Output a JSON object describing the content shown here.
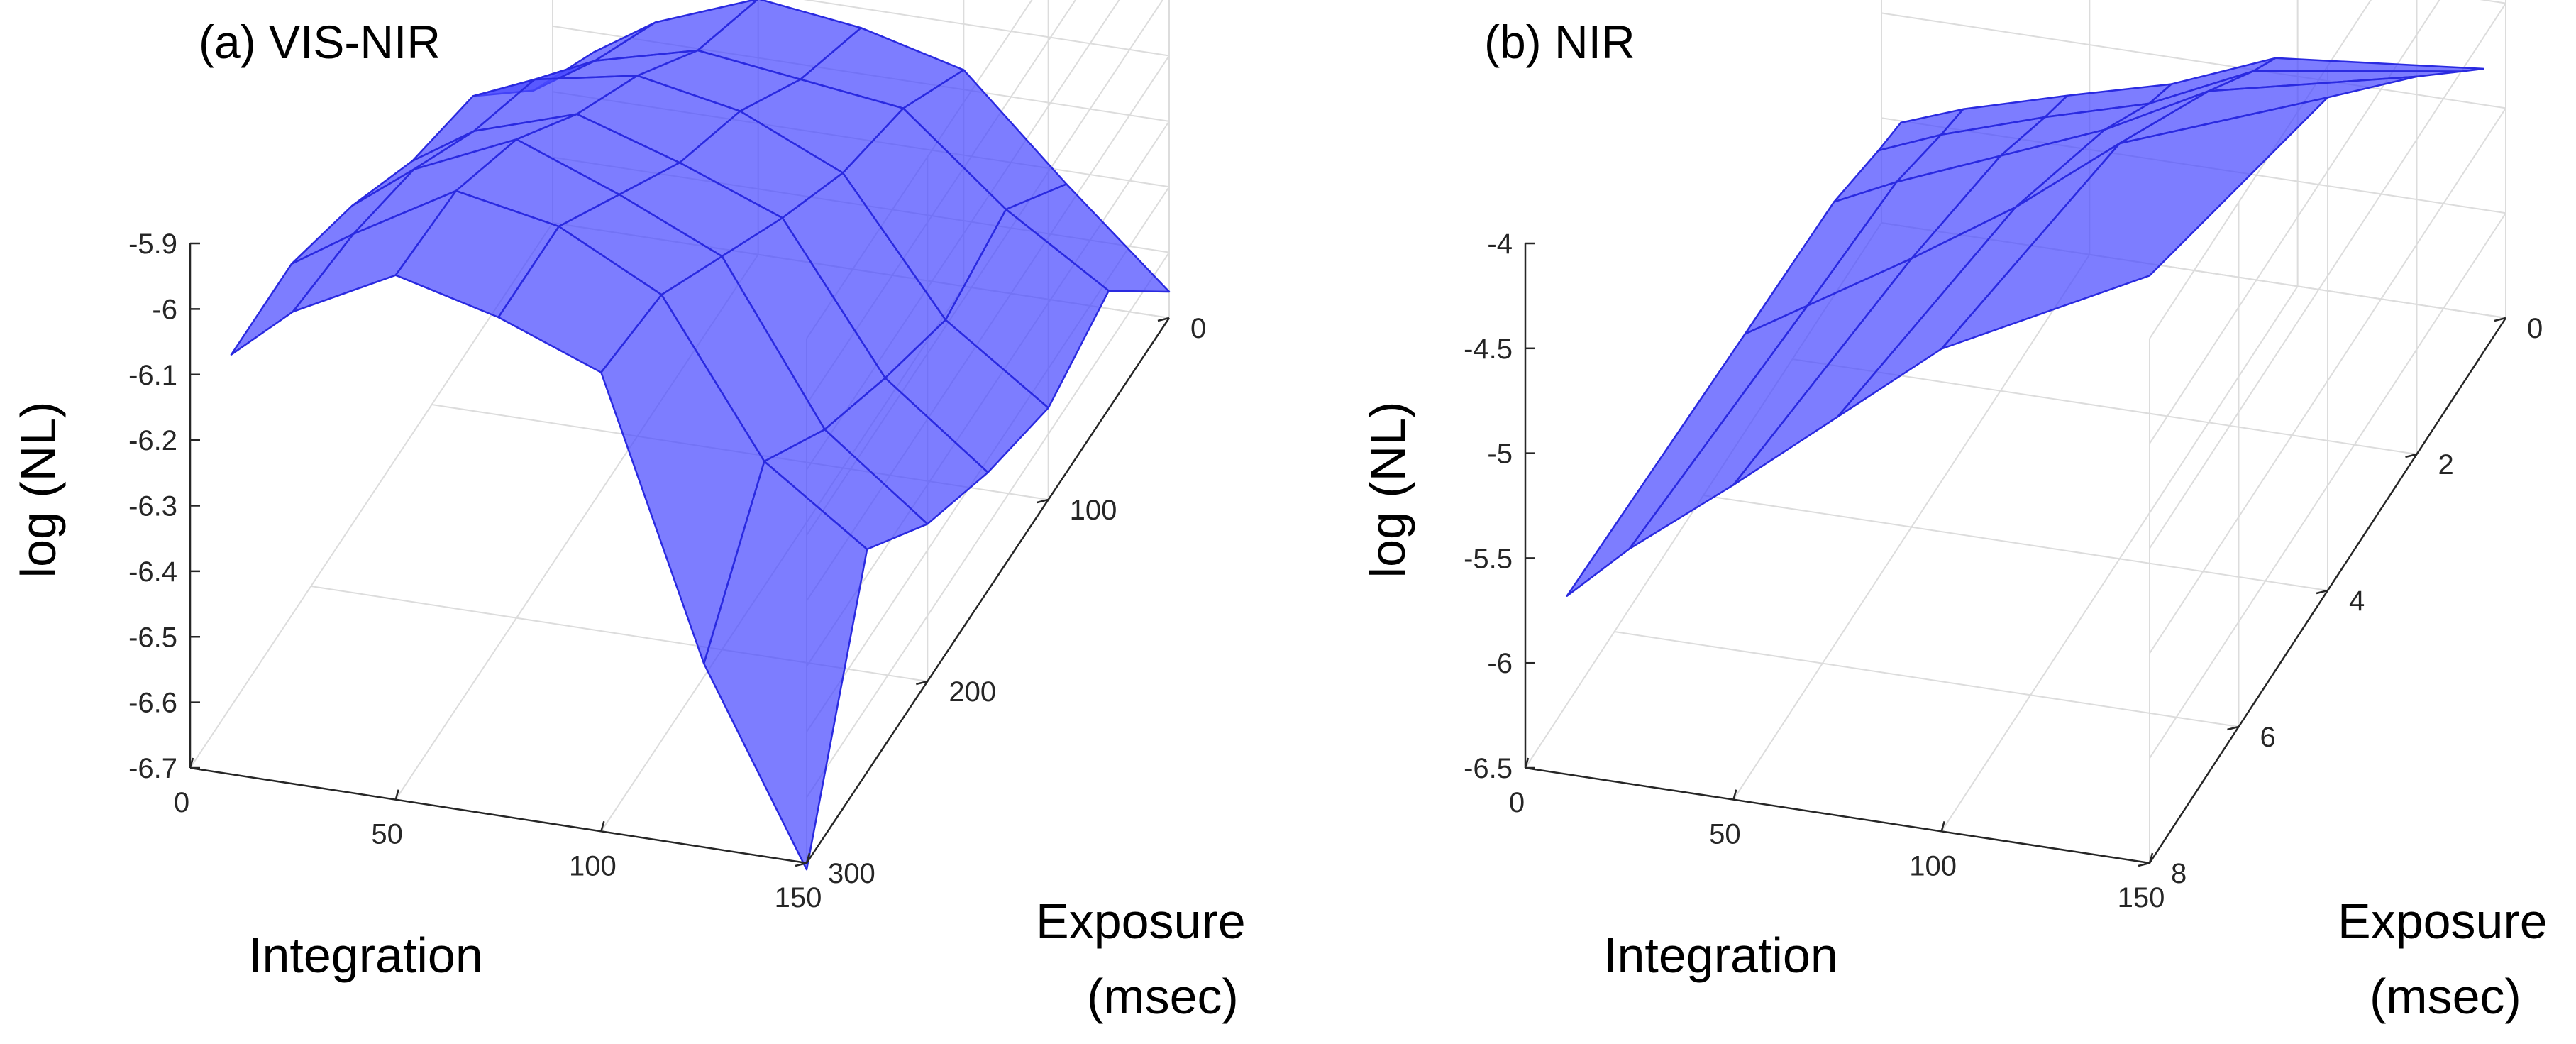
{
  "figure": {
    "panels": [
      {
        "title": "(a) VIS-NIR"
      },
      {
        "title": "(b) NIR"
      }
    ]
  },
  "chart_data": [
    {
      "type": "surface",
      "title": "(a) VIS-NIR",
      "zlabel": "log (NL)",
      "xlabel": "Integration",
      "ylabel_lines": [
        "Exposure",
        "(msec)"
      ],
      "xlim": [
        0,
        150
      ],
      "ylim": [
        0,
        300
      ],
      "zlim": [
        -6.7,
        -5.9
      ],
      "x_ticks": [
        0,
        50,
        100,
        150
      ],
      "y_ticks": [
        0,
        100,
        200,
        300
      ],
      "z_ticks": [
        -5.9,
        -6,
        -6.1,
        -6.2,
        -6.3,
        -6.4,
        -6.5,
        -6.6,
        -6.7
      ],
      "z_tick_labels": [
        "-5.9",
        "-6",
        "-6.1",
        "-6.2",
        "-6.3",
        "-6.4",
        "-6.5",
        "-6.6",
        "-6.7"
      ],
      "integration": [
        10,
        25,
        50,
        75,
        100,
        125,
        150
      ],
      "exposure": [
        0,
        50,
        100,
        150,
        200,
        250,
        300
      ],
      "surface_color": "#4b4bff",
      "grid": true,
      "z": [
        [
          -6.43,
          -6.37,
          -6.31,
          -6.33,
          -6.37,
          -6.52,
          -6.66
        ],
        [
          -6.35,
          -6.29,
          -6.25,
          -6.27,
          -6.29,
          -6.42,
          -6.52
        ],
        [
          -6.22,
          -6.18,
          -6.15,
          -6.18,
          -6.25,
          -6.45,
          -6.56
        ],
        [
          -6.18,
          -6.12,
          -6.07,
          -6.12,
          -6.18,
          -6.4,
          -6.52
        ],
        [
          -6.11,
          -6.04,
          -5.97,
          -6.03,
          -6.1,
          -6.34,
          -6.46
        ],
        [
          -6.06,
          -6.0,
          -5.91,
          -5.94,
          -6.02,
          -6.25,
          -6.36
        ],
        [
          -6.06,
          -5.98,
          -5.9,
          -5.94,
          -6.0,
          -6.42,
          -6.71
        ]
      ]
    },
    {
      "type": "surface",
      "title": "(b) NIR",
      "zlabel": "log (NL)",
      "xlabel": "Integration",
      "ylabel_lines": [
        "Exposure",
        "(msec)"
      ],
      "xlim": [
        0,
        150
      ],
      "ylim": [
        0,
        8
      ],
      "zlim": [
        -6.5,
        -4
      ],
      "x_ticks": [
        0,
        50,
        100,
        150
      ],
      "y_ticks": [
        0,
        2,
        4,
        6,
        8
      ],
      "z_ticks": [
        -4,
        -4.5,
        -5,
        -5.5,
        -6,
        -6.5
      ],
      "z_tick_labels": [
        "-4",
        "-4.5",
        "-5",
        "-5.5",
        "-6",
        "-6.5"
      ],
      "integration": [
        10,
        25,
        50,
        75,
        100,
        150
      ],
      "exposure": [
        0.5,
        1,
        2,
        4,
        8
      ],
      "surface_color": "#4b4bff",
      "grid": true,
      "z": [
        [
          -5.83,
          -5.72,
          -5.58,
          -5.45,
          -5.25,
          -5.15
        ],
        [
          -5.8,
          -5.68,
          -5.52,
          -5.38,
          -5.15,
          -5.0
        ],
        [
          -5.72,
          -5.58,
          -5.38,
          -5.18,
          -4.92,
          -4.7
        ],
        [
          -5.7,
          -5.52,
          -5.22,
          -4.9,
          -4.52,
          -4.15
        ],
        [
          -5.65,
          -5.38,
          -5.0,
          -4.6,
          -4.2,
          -3.7
        ]
      ]
    }
  ]
}
